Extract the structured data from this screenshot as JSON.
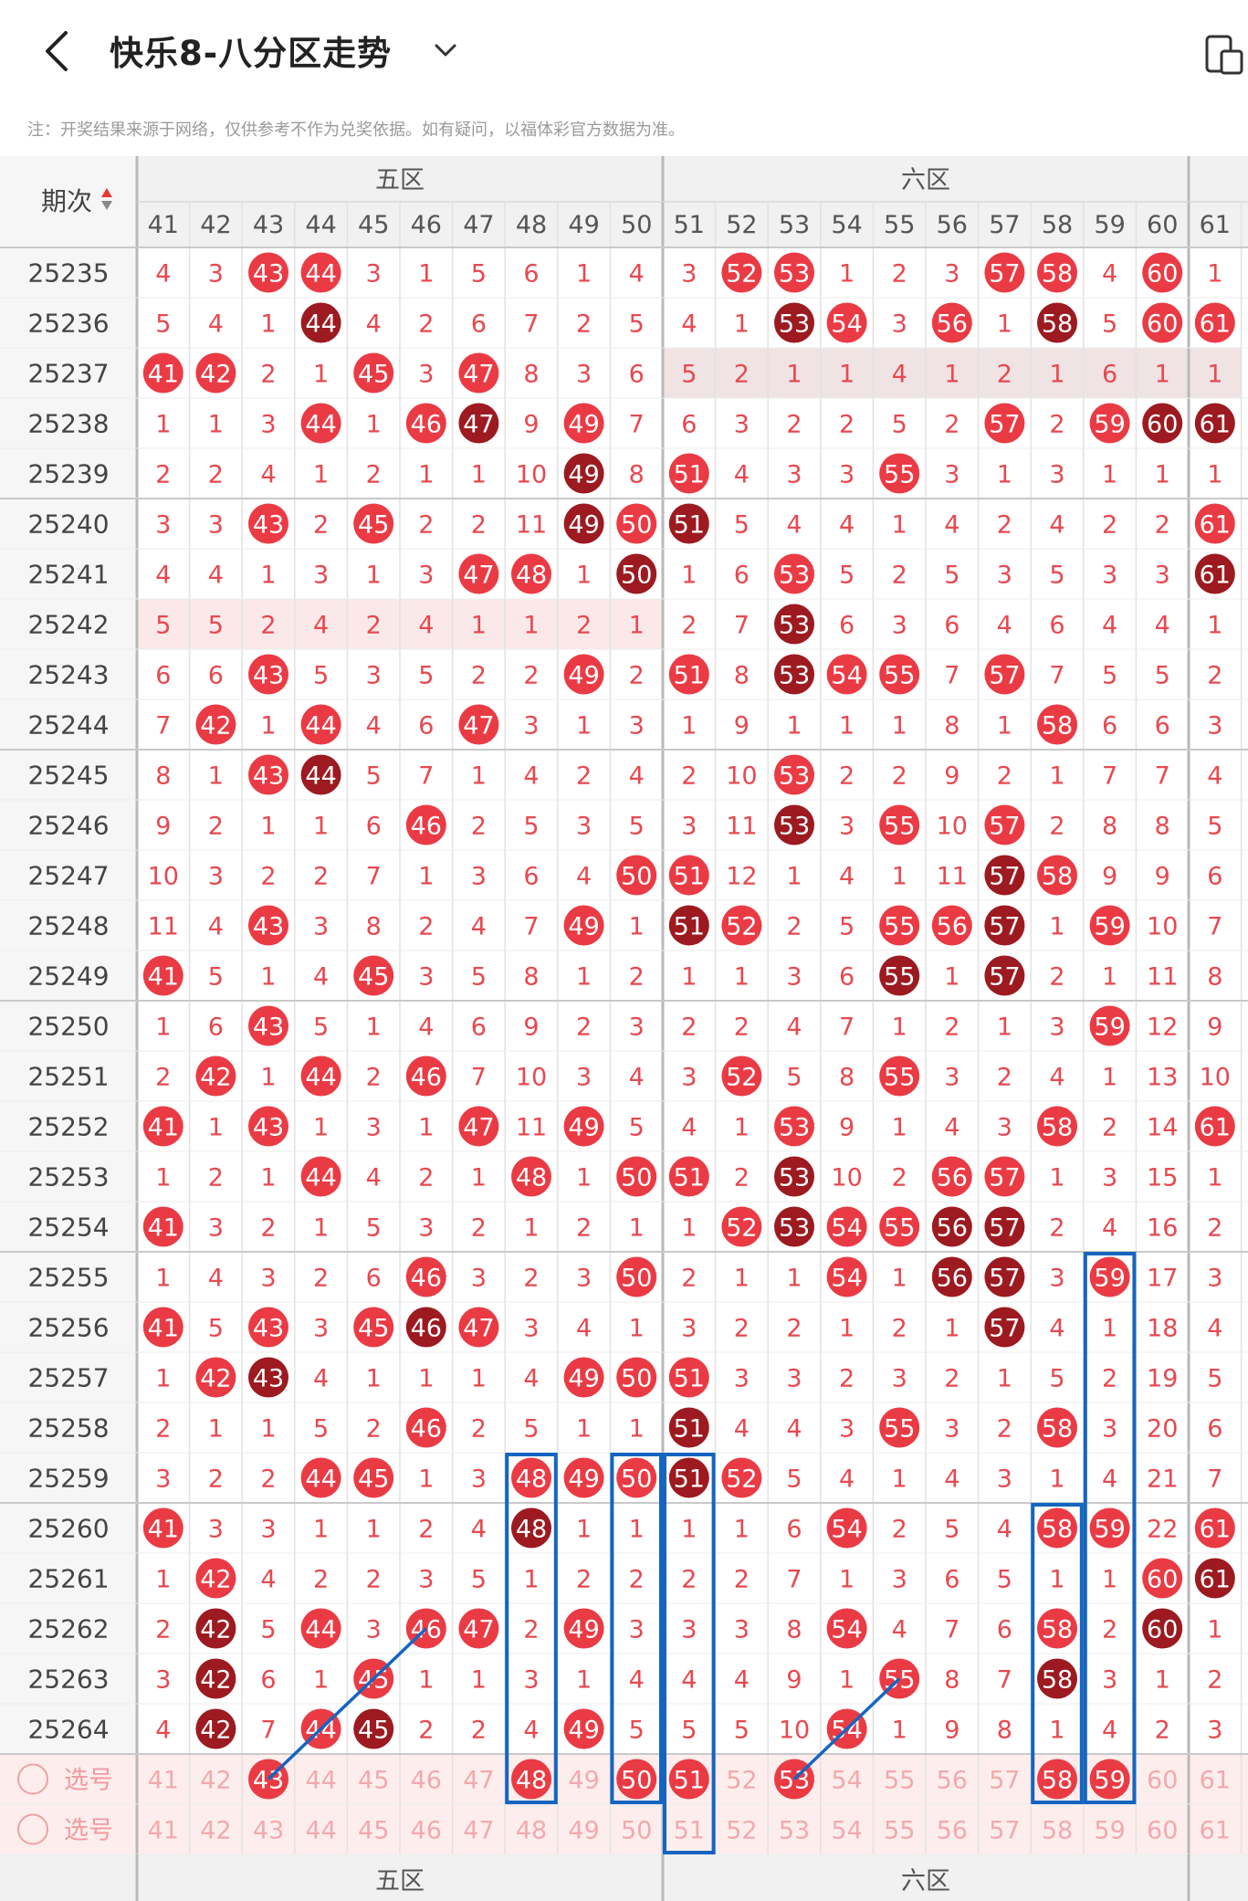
{
  "header": {
    "title": "快乐8-八分区走势",
    "back_icon": "chevron-left-icon",
    "dropdown_icon": "chevron-down-icon",
    "device_icon": "device-switch-icon"
  },
  "notice": "注：开奖结果来源于网络，仅供参考不作为兑奖依据。如有疑问，以福体彩官方数据为准。",
  "table": {
    "period_header": "期次",
    "sort_icon": "sort-icon",
    "zones": [
      "五区",
      "六区"
    ],
    "columns": [
      41,
      42,
      43,
      44,
      45,
      46,
      47,
      48,
      49,
      50,
      51,
      52,
      53,
      54,
      55,
      56,
      57,
      58,
      59,
      60,
      61
    ],
    "colors": {
      "hit": "#ea3b45",
      "hit_consecutive": "#9c1a20",
      "miss_text": "#e8484f",
      "highlight_row_a": "#fbe9ea",
      "highlight_row_b": "#efe3e4",
      "select_row": "#fdeeed",
      "outline": "#1565c0"
    },
    "rows": [
      {
        "period": "25235",
        "cells": [
          "4",
          "3",
          "H",
          "H",
          "3",
          "1",
          "5",
          "6",
          "1",
          "4",
          "3",
          "H",
          "H",
          "1",
          "2",
          "3",
          "H",
          "H",
          "4",
          "H",
          "1"
        ]
      },
      {
        "period": "25236",
        "cells": [
          "5",
          "4",
          "1",
          "D",
          "4",
          "2",
          "6",
          "7",
          "2",
          "5",
          "4",
          "1",
          "D",
          "H",
          "3",
          "H",
          "1",
          "D",
          "5",
          "H",
          "H"
        ]
      },
      {
        "period": "25237",
        "cells": [
          "H",
          "H",
          "2",
          "1",
          "H",
          "3",
          "H",
          "8",
          "3",
          "6",
          "5",
          "2",
          "1",
          "1",
          "4",
          "1",
          "2",
          "1",
          "6",
          "1",
          "1"
        ]
      },
      {
        "period": "25238",
        "cells": [
          "1",
          "1",
          "3",
          "H",
          "1",
          "H",
          "D",
          "9",
          "H",
          "7",
          "6",
          "3",
          "2",
          "2",
          "5",
          "2",
          "H",
          "2",
          "H",
          "D",
          "D"
        ]
      },
      {
        "period": "25239",
        "cells": [
          "2",
          "2",
          "4",
          "1",
          "2",
          "1",
          "1",
          "10",
          "D",
          "8",
          "H",
          "4",
          "3",
          "3",
          "H",
          "3",
          "1",
          "3",
          "1",
          "1",
          "1"
        ]
      },
      {
        "period": "25240",
        "cells": [
          "3",
          "3",
          "H",
          "2",
          "H",
          "2",
          "2",
          "11",
          "D",
          "H",
          "D",
          "5",
          "4",
          "4",
          "1",
          "4",
          "2",
          "4",
          "2",
          "2",
          "H"
        ]
      },
      {
        "period": "25241",
        "cells": [
          "4",
          "4",
          "1",
          "3",
          "1",
          "3",
          "H",
          "H",
          "1",
          "D",
          "1",
          "6",
          "H",
          "5",
          "2",
          "5",
          "3",
          "5",
          "3",
          "3",
          "D"
        ]
      },
      {
        "period": "25242",
        "cells": [
          "5",
          "5",
          "2",
          "4",
          "2",
          "4",
          "1",
          "1",
          "2",
          "1",
          "2",
          "7",
          "D",
          "6",
          "3",
          "6",
          "4",
          "6",
          "4",
          "4",
          "1"
        ]
      },
      {
        "period": "25243",
        "cells": [
          "6",
          "6",
          "H",
          "5",
          "3",
          "5",
          "2",
          "2",
          "H",
          "2",
          "H",
          "8",
          "D",
          "H",
          "H",
          "7",
          "H",
          "7",
          "5",
          "5",
          "2"
        ]
      },
      {
        "period": "25244",
        "cells": [
          "7",
          "H",
          "1",
          "H",
          "4",
          "6",
          "H",
          "3",
          "1",
          "3",
          "1",
          "9",
          "1",
          "1",
          "1",
          "8",
          "1",
          "H",
          "6",
          "6",
          "3"
        ]
      },
      {
        "period": "25245",
        "cells": [
          "8",
          "1",
          "H",
          "D",
          "5",
          "7",
          "1",
          "4",
          "2",
          "4",
          "2",
          "10",
          "H",
          "2",
          "2",
          "9",
          "2",
          "1",
          "7",
          "7",
          "4"
        ]
      },
      {
        "period": "25246",
        "cells": [
          "9",
          "2",
          "1",
          "1",
          "6",
          "H",
          "2",
          "5",
          "3",
          "5",
          "3",
          "11",
          "D",
          "3",
          "H",
          "10",
          "H",
          "2",
          "8",
          "8",
          "5"
        ]
      },
      {
        "period": "25247",
        "cells": [
          "10",
          "3",
          "2",
          "2",
          "7",
          "1",
          "3",
          "6",
          "4",
          "H",
          "H",
          "12",
          "1",
          "4",
          "1",
          "11",
          "D",
          "H",
          "9",
          "9",
          "6"
        ]
      },
      {
        "period": "25248",
        "cells": [
          "11",
          "4",
          "H",
          "3",
          "8",
          "2",
          "4",
          "7",
          "H",
          "1",
          "D",
          "H",
          "2",
          "5",
          "H",
          "H",
          "D",
          "1",
          "H",
          "10",
          "7"
        ]
      },
      {
        "period": "25249",
        "cells": [
          "H",
          "5",
          "1",
          "4",
          "H",
          "3",
          "5",
          "8",
          "1",
          "2",
          "1",
          "1",
          "3",
          "6",
          "D",
          "1",
          "D",
          "2",
          "1",
          "11",
          "8"
        ]
      },
      {
        "period": "25250",
        "cells": [
          "1",
          "6",
          "H",
          "5",
          "1",
          "4",
          "6",
          "9",
          "2",
          "3",
          "2",
          "2",
          "4",
          "7",
          "1",
          "2",
          "1",
          "3",
          "H",
          "12",
          "9"
        ]
      },
      {
        "period": "25251",
        "cells": [
          "2",
          "H",
          "1",
          "H",
          "2",
          "H",
          "7",
          "10",
          "3",
          "4",
          "3",
          "H",
          "5",
          "8",
          "H",
          "3",
          "2",
          "4",
          "1",
          "13",
          "10"
        ]
      },
      {
        "period": "25252",
        "cells": [
          "H",
          "1",
          "H",
          "1",
          "3",
          "1",
          "H",
          "11",
          "H",
          "5",
          "4",
          "1",
          "H",
          "9",
          "1",
          "4",
          "3",
          "H",
          "2",
          "14",
          "H"
        ]
      },
      {
        "period": "25253",
        "cells": [
          "1",
          "2",
          "1",
          "H",
          "4",
          "2",
          "1",
          "H",
          "1",
          "H",
          "H",
          "2",
          "D",
          "10",
          "2",
          "H",
          "H",
          "1",
          "3",
          "15",
          "1"
        ]
      },
      {
        "period": "25254",
        "cells": [
          "H",
          "3",
          "2",
          "1",
          "5",
          "3",
          "2",
          "1",
          "2",
          "1",
          "1",
          "H",
          "D",
          "H",
          "H",
          "D",
          "D",
          "2",
          "4",
          "16",
          "2"
        ]
      },
      {
        "period": "25255",
        "cells": [
          "1",
          "4",
          "3",
          "2",
          "6",
          "H",
          "3",
          "2",
          "3",
          "H",
          "2",
          "1",
          "1",
          "H",
          "1",
          "D",
          "D",
          "3",
          "H",
          "17",
          "3"
        ]
      },
      {
        "period": "25256",
        "cells": [
          "H",
          "5",
          "H",
          "3",
          "H",
          "D",
          "H",
          "3",
          "4",
          "1",
          "3",
          "2",
          "2",
          "1",
          "2",
          "1",
          "D",
          "4",
          "1",
          "18",
          "4"
        ]
      },
      {
        "period": "25257",
        "cells": [
          "1",
          "H",
          "D",
          "4",
          "1",
          "1",
          "1",
          "4",
          "H",
          "H",
          "H",
          "3",
          "3",
          "2",
          "3",
          "2",
          "1",
          "5",
          "2",
          "19",
          "5"
        ]
      },
      {
        "period": "25258",
        "cells": [
          "2",
          "1",
          "1",
          "5",
          "2",
          "H",
          "2",
          "5",
          "1",
          "1",
          "D",
          "4",
          "4",
          "3",
          "H",
          "3",
          "2",
          "H",
          "3",
          "20",
          "6"
        ]
      },
      {
        "period": "25259",
        "cells": [
          "3",
          "2",
          "2",
          "H",
          "H",
          "1",
          "3",
          "H",
          "H",
          "H",
          "D",
          "H",
          "5",
          "4",
          "1",
          "4",
          "3",
          "1",
          "4",
          "21",
          "7"
        ]
      },
      {
        "period": "25260",
        "cells": [
          "H",
          "3",
          "3",
          "1",
          "1",
          "2",
          "4",
          "D",
          "1",
          "1",
          "1",
          "1",
          "6",
          "H",
          "2",
          "5",
          "4",
          "H",
          "H",
          "22",
          "H"
        ]
      },
      {
        "period": "25261",
        "cells": [
          "1",
          "H",
          "4",
          "2",
          "2",
          "3",
          "5",
          "1",
          "2",
          "2",
          "2",
          "2",
          "7",
          "1",
          "3",
          "6",
          "5",
          "1",
          "1",
          "H",
          "D"
        ]
      },
      {
        "period": "25262",
        "cells": [
          "2",
          "D",
          "5",
          "H",
          "3",
          "H",
          "H",
          "2",
          "H",
          "3",
          "3",
          "3",
          "8",
          "H",
          "4",
          "7",
          "6",
          "H",
          "2",
          "D",
          "1"
        ]
      },
      {
        "period": "25263",
        "cells": [
          "3",
          "D",
          "6",
          "1",
          "H",
          "1",
          "1",
          "3",
          "1",
          "4",
          "4",
          "4",
          "9",
          "1",
          "H",
          "8",
          "7",
          "D",
          "3",
          "1",
          "2"
        ]
      },
      {
        "period": "25264",
        "cells": [
          "4",
          "D",
          "7",
          "H",
          "D",
          "2",
          "2",
          "4",
          "H",
          "5",
          "5",
          "5",
          "10",
          "H",
          "1",
          "9",
          "8",
          "1",
          "4",
          "2",
          "3"
        ]
      }
    ],
    "select_label": "选号",
    "select_circle_icon": "radio-circle-icon",
    "select_row1_picked": [
      43,
      48,
      50,
      51,
      53,
      58,
      59
    ],
    "select_row2_picked": []
  }
}
